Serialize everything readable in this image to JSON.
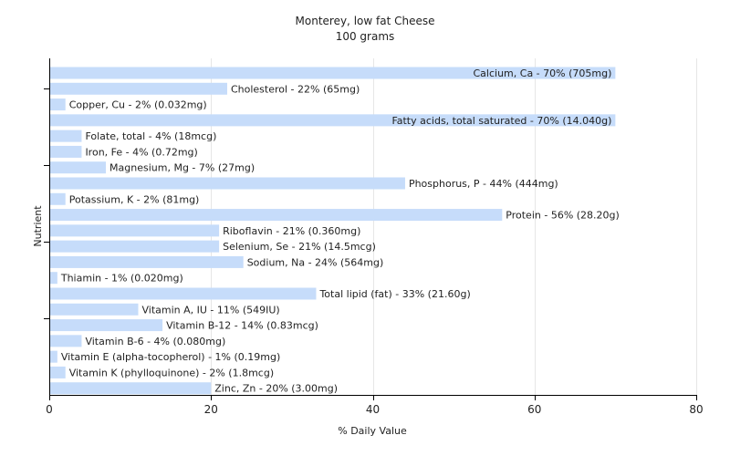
{
  "chart_data": {
    "type": "bar",
    "orientation": "horizontal",
    "title": "Monterey, low fat Cheese",
    "subtitle": "100 grams",
    "xlabel": "% Daily Value",
    "ylabel": "Nutrient",
    "xlim": [
      0,
      80
    ],
    "xticks": [
      0,
      20,
      40,
      60,
      80
    ],
    "grid": true,
    "bar_color": "#c6dcfa",
    "bars": [
      {
        "label": "Calcium, Ca - 70% (705mg)",
        "value": 70
      },
      {
        "label": "Cholesterol - 22% (65mg)",
        "value": 22
      },
      {
        "label": "Copper, Cu - 2% (0.032mg)",
        "value": 2
      },
      {
        "label": "Fatty acids, total saturated - 70% (14.040g)",
        "value": 70
      },
      {
        "label": "Folate, total - 4% (18mcg)",
        "value": 4
      },
      {
        "label": "Iron, Fe - 4% (0.72mg)",
        "value": 4
      },
      {
        "label": "Magnesium, Mg - 7% (27mg)",
        "value": 7
      },
      {
        "label": "Phosphorus, P - 44% (444mg)",
        "value": 44
      },
      {
        "label": "Potassium, K - 2% (81mg)",
        "value": 2
      },
      {
        "label": "Protein - 56% (28.20g)",
        "value": 56
      },
      {
        "label": "Riboflavin - 21% (0.360mg)",
        "value": 21
      },
      {
        "label": "Selenium, Se - 21% (14.5mcg)",
        "value": 21
      },
      {
        "label": "Sodium, Na - 24% (564mg)",
        "value": 24
      },
      {
        "label": "Thiamin - 1% (0.020mg)",
        "value": 1
      },
      {
        "label": "Total lipid (fat) - 33% (21.60g)",
        "value": 33
      },
      {
        "label": "Vitamin A, IU - 11% (549IU)",
        "value": 11
      },
      {
        "label": "Vitamin B-12 - 14% (0.83mcg)",
        "value": 14
      },
      {
        "label": "Vitamin B-6 - 4% (0.080mg)",
        "value": 4
      },
      {
        "label": "Vitamin E (alpha-tocopherol) - 1% (0.19mg)",
        "value": 1
      },
      {
        "label": "Vitamin K (phylloquinone) - 2% (1.8mcg)",
        "value": 2
      },
      {
        "label": "Zinc, Zn - 20% (3.00mg)",
        "value": 20
      }
    ]
  }
}
